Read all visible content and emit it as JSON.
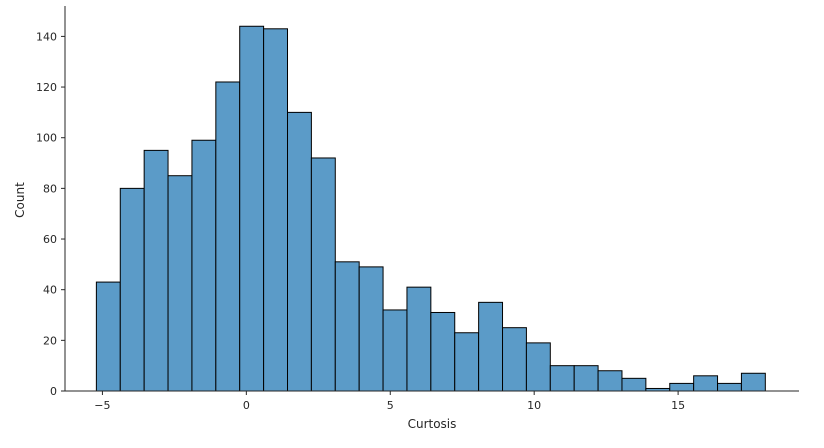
{
  "chart_data": {
    "type": "bar",
    "subtype": "histogram",
    "xlabel": "Curtosis",
    "ylabel": "Count",
    "xlim": [
      -6.3,
      19.2
    ],
    "ylim": [
      0,
      152
    ],
    "x_ticks": [
      -5,
      0,
      5,
      10,
      15
    ],
    "x_tick_labels": [
      "−5",
      "0",
      "5",
      "10",
      "15"
    ],
    "y_ticks": [
      0,
      20,
      40,
      60,
      80,
      100,
      120,
      140
    ],
    "y_tick_labels": [
      "0",
      "20",
      "40",
      "60",
      "80",
      "100",
      "120",
      "140"
    ],
    "bar_color": "#5b9bc8",
    "edge_color": "#000000",
    "grid": false,
    "bins": [
      {
        "x0": -5.21,
        "x1": -4.38,
        "count": 43
      },
      {
        "x0": -4.38,
        "x1": -3.55,
        "count": 80
      },
      {
        "x0": -3.55,
        "x1": -2.72,
        "count": 95
      },
      {
        "x0": -2.72,
        "x1": -1.89,
        "count": 85
      },
      {
        "x0": -1.89,
        "x1": -1.06,
        "count": 99
      },
      {
        "x0": -1.06,
        "x1": -0.23,
        "count": 122
      },
      {
        "x0": -0.23,
        "x1": 0.6,
        "count": 144
      },
      {
        "x0": 0.6,
        "x1": 1.43,
        "count": 143
      },
      {
        "x0": 1.43,
        "x1": 2.26,
        "count": 110
      },
      {
        "x0": 2.26,
        "x1": 3.09,
        "count": 92
      },
      {
        "x0": 3.09,
        "x1": 3.92,
        "count": 51
      },
      {
        "x0": 3.92,
        "x1": 4.75,
        "count": 49
      },
      {
        "x0": 4.75,
        "x1": 5.58,
        "count": 32
      },
      {
        "x0": 5.58,
        "x1": 6.41,
        "count": 41
      },
      {
        "x0": 6.41,
        "x1": 7.24,
        "count": 31
      },
      {
        "x0": 7.24,
        "x1": 8.07,
        "count": 23
      },
      {
        "x0": 8.07,
        "x1": 8.9,
        "count": 35
      },
      {
        "x0": 8.9,
        "x1": 9.73,
        "count": 25
      },
      {
        "x0": 9.73,
        "x1": 10.56,
        "count": 19
      },
      {
        "x0": 10.56,
        "x1": 11.39,
        "count": 10
      },
      {
        "x0": 11.39,
        "x1": 12.22,
        "count": 10
      },
      {
        "x0": 12.22,
        "x1": 13.05,
        "count": 8
      },
      {
        "x0": 13.05,
        "x1": 13.88,
        "count": 5
      },
      {
        "x0": 13.88,
        "x1": 14.71,
        "count": 1
      },
      {
        "x0": 14.71,
        "x1": 15.54,
        "count": 3
      },
      {
        "x0": 15.54,
        "x1": 16.37,
        "count": 6
      },
      {
        "x0": 16.37,
        "x1": 17.2,
        "count": 3
      },
      {
        "x0": 17.2,
        "x1": 18.03,
        "count": 7
      }
    ]
  }
}
